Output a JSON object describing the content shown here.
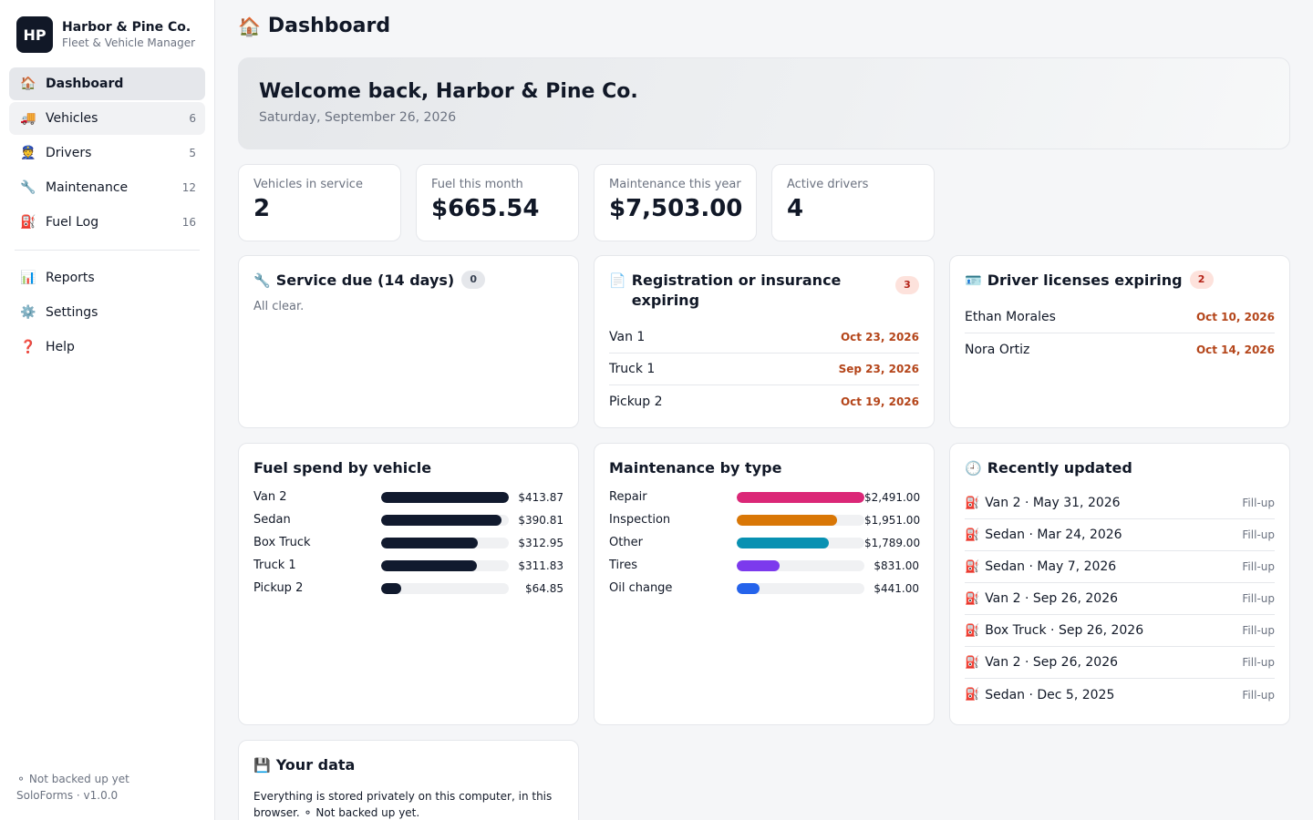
{
  "brand": {
    "initials": "HP",
    "name": "Harbor & Pine Co.",
    "subtitle": "Fleet & Vehicle Manager"
  },
  "nav": [
    {
      "icon": "🏠",
      "icon_name": "house-icon",
      "label": "Dashboard",
      "count": "",
      "state": "active"
    },
    {
      "icon": "🚚",
      "icon_name": "truck-icon",
      "label": "Vehicles",
      "count": "6",
      "state": "hover"
    },
    {
      "icon": "👮",
      "icon_name": "driver-icon",
      "label": "Drivers",
      "count": "5",
      "state": ""
    },
    {
      "icon": "🔧",
      "icon_name": "wrench-icon",
      "label": "Maintenance",
      "count": "12",
      "state": ""
    },
    {
      "icon": "⛽",
      "icon_name": "fuel-pump-icon",
      "label": "Fuel Log",
      "count": "16",
      "state": ""
    }
  ],
  "nav_secondary": [
    {
      "icon": "📊",
      "icon_name": "bar-chart-icon",
      "label": "Reports"
    },
    {
      "icon": "⚙️",
      "icon_name": "gear-icon",
      "label": "Settings"
    },
    {
      "icon": "❓",
      "icon_name": "question-icon",
      "label": "Help"
    }
  ],
  "footer": {
    "backup_status": "⚬ Not backed up yet",
    "version": "SoloForms · v1.0.0"
  },
  "page": {
    "icon": "🏠",
    "title": "Dashboard"
  },
  "welcome": {
    "heading": "Welcome back, Harbor & Pine Co.",
    "date": "Saturday, September 26, 2026"
  },
  "stats": [
    {
      "label": "Vehicles in service",
      "value": "2"
    },
    {
      "label": "Fuel this month",
      "value": "$665.54"
    },
    {
      "label": "Maintenance this year",
      "value": "$7,503.00"
    },
    {
      "label": "Active drivers",
      "value": "4"
    }
  ],
  "service_due": {
    "icon": "🔧",
    "title": "Service due (14 days)",
    "count": "0",
    "empty": "All clear."
  },
  "registration": {
    "icon": "📄",
    "title": "Registration or insurance expiring",
    "count": "3",
    "items": [
      {
        "name": "Van 1",
        "date": "Oct 23, 2026"
      },
      {
        "name": "Truck 1",
        "date": "Sep 23, 2026"
      },
      {
        "name": "Pickup 2",
        "date": "Oct 19, 2026"
      }
    ]
  },
  "licenses": {
    "icon": "🪪",
    "title": "Driver licenses expiring",
    "count": "2",
    "items": [
      {
        "name": "Ethan Morales",
        "date": "Oct 10, 2026"
      },
      {
        "name": "Nora Ortiz",
        "date": "Oct 14, 2026"
      }
    ]
  },
  "fuel_spend": {
    "title": "Fuel spend by vehicle",
    "color": "#111a2e",
    "items": [
      {
        "label": "Van 2",
        "value": 413.87,
        "display": "$413.87"
      },
      {
        "label": "Sedan",
        "value": 390.81,
        "display": "$390.81"
      },
      {
        "label": "Box Truck",
        "value": 312.95,
        "display": "$312.95"
      },
      {
        "label": "Truck 1",
        "value": 311.83,
        "display": "$311.83"
      },
      {
        "label": "Pickup 2",
        "value": 64.85,
        "display": "$64.85"
      }
    ]
  },
  "maintenance_type": {
    "title": "Maintenance by type",
    "items": [
      {
        "label": "Repair",
        "value": 2491.0,
        "display": "$2,491.00",
        "color": "#db2777"
      },
      {
        "label": "Inspection",
        "value": 1951.0,
        "display": "$1,951.00",
        "color": "#d97706"
      },
      {
        "label": "Other",
        "value": 1789.0,
        "display": "$1,789.00",
        "color": "#0891b2"
      },
      {
        "label": "Tires",
        "value": 831.0,
        "display": "$831.00",
        "color": "#7c3aed"
      },
      {
        "label": "Oil change",
        "value": 441.0,
        "display": "$441.00",
        "color": "#2563eb"
      }
    ]
  },
  "recent": {
    "icon": "🕘",
    "title": "Recently updated",
    "items": [
      {
        "icon": "⛽",
        "text": "Van 2 · May 31, 2026",
        "type": "Fill-up"
      },
      {
        "icon": "⛽",
        "text": "Sedan · Mar 24, 2026",
        "type": "Fill-up"
      },
      {
        "icon": "⛽",
        "text": "Sedan · May 7, 2026",
        "type": "Fill-up"
      },
      {
        "icon": "⛽",
        "text": "Van 2 · Sep 26, 2026",
        "type": "Fill-up"
      },
      {
        "icon": "⛽",
        "text": "Box Truck · Sep 26, 2026",
        "type": "Fill-up"
      },
      {
        "icon": "⛽",
        "text": "Van 2 · Sep 26, 2026",
        "type": "Fill-up"
      },
      {
        "icon": "⛽",
        "text": "Sedan · Dec 5, 2025",
        "type": "Fill-up"
      }
    ]
  },
  "your_data": {
    "icon": "💾",
    "title": "Your data",
    "text": "Everything is stored privately on this computer, in this browser. ⚬ Not backed up yet."
  }
}
